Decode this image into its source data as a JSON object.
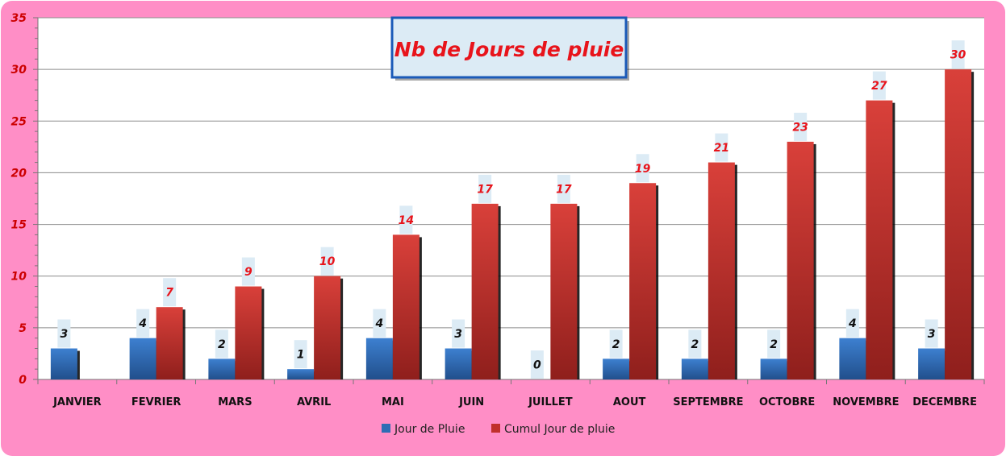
{
  "chart_data": {
    "type": "bar",
    "title": "Nb de Jours de pluie",
    "categories": [
      "JANVIER",
      "FEVRIER",
      "MARS",
      "AVRIL",
      "MAI",
      "JUIN",
      "JUILLET",
      "AOUT",
      "SEPTEMBRE",
      "OCTOBRE",
      "NOVEMBRE",
      "DECEMBRE"
    ],
    "series": [
      {
        "name": "Jour de Pluie",
        "values": [
          3,
          4,
          2,
          1,
          4,
          3,
          0,
          2,
          2,
          2,
          4,
          3
        ],
        "color": "#2e6db4"
      },
      {
        "name": "Cumul Jour de pluie",
        "values": [
          null,
          7,
          9,
          10,
          14,
          17,
          17,
          19,
          21,
          23,
          27,
          30
        ],
        "color": "#c0302b"
      }
    ],
    "ylim": [
      0,
      35
    ],
    "yticks": [
      0,
      5,
      10,
      15,
      20,
      25,
      30,
      35
    ],
    "grid": true,
    "legend_position": "bottom",
    "data_labels": true,
    "colors": {
      "frame_background": "#ff8ec6",
      "plot_background": "#ffffff",
      "title_text": "#e8141b",
      "title_box_fill": "#dcebf5",
      "title_box_border": "#1a5ab8",
      "label_box_fill": "#dcebf5",
      "blue_label_text": "#111111",
      "red_label_text": "#e8141b",
      "axis_tick_text": "#cc0000",
      "category_text": "#111111"
    }
  }
}
